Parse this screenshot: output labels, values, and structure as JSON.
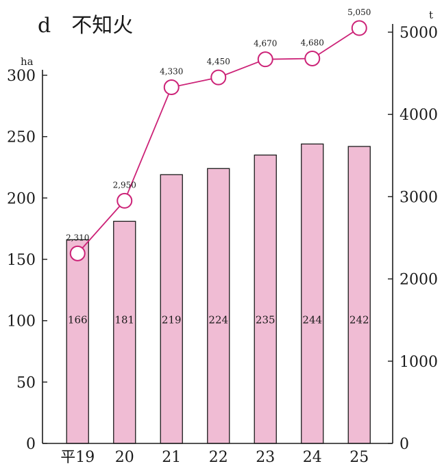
{
  "chart_data": {
    "type": "bar",
    "title": "d　不知火",
    "categories": [
      "平19",
      "20",
      "21",
      "22",
      "23",
      "24",
      "25"
    ],
    "bar_series": {
      "values": [
        166,
        181,
        219,
        224,
        235,
        244,
        242
      ],
      "unit": "ha",
      "axis": "left",
      "ylim": [
        0,
        300
      ],
      "ticks": [
        0,
        50,
        100,
        150,
        200,
        250,
        300
      ],
      "color": "#f0bcd4",
      "edge": "#1a1a1a"
    },
    "line_series": {
      "values": [
        2310,
        2950,
        4330,
        4450,
        4670,
        4680,
        5050
      ],
      "labels": [
        "2,310",
        "2,950",
        "4,330",
        "4,450",
        "4,670",
        "4,680",
        "5,050"
      ],
      "unit": "t",
      "axis": "right",
      "ylim": [
        0,
        5000
      ],
      "ticks": [
        0,
        1000,
        2000,
        3000,
        4000,
        5000
      ],
      "color": "#cc2277"
    },
    "grid": false
  }
}
